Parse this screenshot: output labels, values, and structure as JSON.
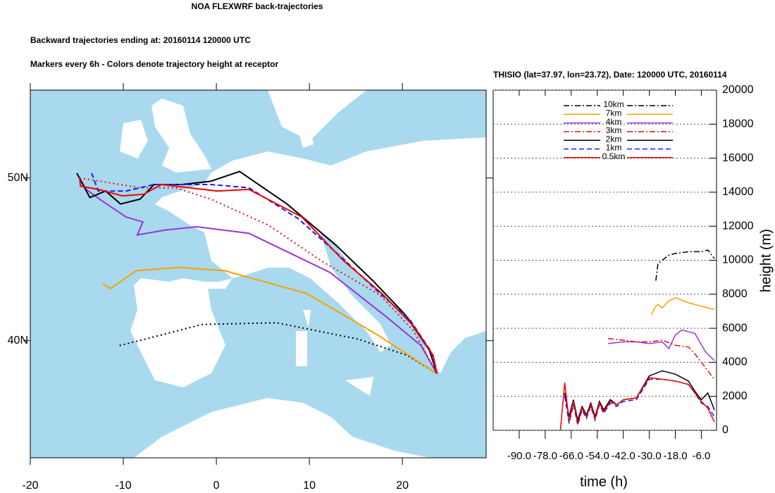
{
  "chart_data": [
    {
      "type": "trajectory_map",
      "title": "NOA FLEXWRF back-trajectories",
      "subtitle": "Backward trajectories ending at: 20160114  120000 UTC",
      "annotation": "Markers every 6h - Colors denote trajectory height at receptor",
      "xlim": [
        -20,
        29
      ],
      "ylim": [
        32.8,
        55.4
      ],
      "xticks": [
        -20,
        -10,
        0,
        10,
        20
      ],
      "yticks": [
        {
          "value": 40,
          "label": "40N"
        },
        {
          "value": 50,
          "label": "50N"
        }
      ],
      "series": [
        {
          "color": "#000000",
          "dash": "dotted",
          "lon": [
            -10.4,
            -8.3,
            -1.5,
            6.5,
            15.2,
            20.5,
            23.72
          ],
          "lat": [
            39.7,
            40.0,
            41.0,
            41.1,
            40.1,
            39.1,
            37.97
          ]
        },
        {
          "color": "#f5a300",
          "dash": "solid",
          "lon": [
            -12.2,
            -11.4,
            -8.6,
            -4.0,
            0.9,
            9.7,
            17.2,
            23.72
          ],
          "lat": [
            43.5,
            43.2,
            44.3,
            44.5,
            44.3,
            42.9,
            40.4,
            37.97
          ]
        },
        {
          "color": "#9933dd",
          "dash": "solid",
          "lon": [
            -14.7,
            -14.0,
            -12.3,
            -9.7,
            -7.9,
            -8.5,
            -5.5,
            -2.1,
            3.5,
            12.2,
            18.2,
            22.0,
            23.72
          ],
          "lat": [
            50.0,
            49.3,
            48.6,
            47.6,
            47.3,
            46.5,
            46.8,
            47.0,
            46.6,
            44.2,
            41.5,
            39.7,
            37.97
          ]
        },
        {
          "color": "#e01010",
          "dash": "dotted",
          "lon": [
            -14.7,
            -12.5,
            -8.2,
            -4.4,
            -0.6,
            5.6,
            11.3,
            17.6,
            21.2,
            23.72
          ],
          "lat": [
            50.0,
            49.8,
            49.4,
            49.4,
            48.7,
            47.1,
            44.9,
            42.8,
            40.6,
            37.97
          ]
        },
        {
          "color": "#000000",
          "dash": "solid",
          "lon": [
            -15.0,
            -13.6,
            -11.9,
            -10.3,
            -8.2,
            -6.7,
            -3.7,
            -0.6,
            2.5,
            7.6,
            12.8,
            16.8,
            20.3,
            22.9,
            23.72
          ],
          "lat": [
            50.3,
            48.8,
            49.2,
            48.4,
            48.7,
            49.6,
            49.6,
            49.8,
            50.4,
            48.4,
            45.9,
            43.7,
            41.6,
            39.4,
            37.97
          ]
        },
        {
          "color": "#1a1aff",
          "dash": "dashed",
          "lon": [
            -13.4,
            -12.7,
            -9.7,
            -6.7,
            -0.6,
            3.5,
            8.8,
            13.5,
            17.4,
            20.8,
            23.0,
            23.72
          ],
          "lat": [
            50.3,
            49.2,
            49.2,
            49.6,
            49.6,
            49.4,
            47.5,
            45.1,
            43.0,
            41.3,
            39.4,
            37.97
          ]
        },
        {
          "color": "#ee0000",
          "dash": "solid",
          "lon": [
            -14.7,
            -14.6,
            -12.7,
            -10.1,
            -7.8,
            -5.9,
            -2.9,
            0.1,
            3.5,
            9.2,
            13.7,
            17.8,
            21.2,
            23.3,
            23.72
          ],
          "lat": [
            50.0,
            49.5,
            49.3,
            48.9,
            49.0,
            49.6,
            49.4,
            49.2,
            49.3,
            47.6,
            44.9,
            42.9,
            40.9,
            39.1,
            37.97
          ]
        }
      ]
    },
    {
      "type": "line",
      "title": "THISIO (lat=37.97,  lon=23.72), Date: 120000 UTC, 20160114",
      "xlabel": "time (h)",
      "ylabel": "height (m)",
      "xlim": [
        -102,
        1
      ],
      "ylim": [
        0,
        20000
      ],
      "xticks": [
        {
          "value": -90,
          "label": "-90.0"
        },
        {
          "value": -78,
          "label": "-78.0"
        },
        {
          "value": -66,
          "label": "-66.0"
        },
        {
          "value": -54,
          "label": "-54.0"
        },
        {
          "value": -42,
          "label": "-42.0"
        },
        {
          "value": -30,
          "label": "-30.0"
        },
        {
          "value": -18,
          "label": "-18.0"
        },
        {
          "value": -6,
          "label": "-6.0"
        }
      ],
      "yticks": [
        0,
        2000,
        4000,
        6000,
        8000,
        10000,
        12000,
        14000,
        16000,
        18000,
        20000
      ],
      "grid": true,
      "legend_position": "top",
      "series": [
        {
          "name": "10km",
          "color": "#000000",
          "dash": "dashdot",
          "x": [
            -27,
            -26,
            -24,
            -21,
            -18,
            -12,
            -6,
            -3,
            0
          ],
          "values": [
            8800,
            9800,
            10000,
            10300,
            10400,
            10500,
            10500,
            10600,
            10100
          ]
        },
        {
          "name": "7km",
          "color": "#f5a300",
          "dash": "solid",
          "x": [
            -29,
            -27,
            -26,
            -24,
            -21,
            -18,
            -12,
            -6,
            -3,
            0
          ],
          "values": [
            6800,
            7300,
            7400,
            7200,
            7600,
            7800,
            7500,
            7300,
            7200,
            7100
          ]
        },
        {
          "name": "4km",
          "color": "#9933dd",
          "dash": "solid",
          "x": [
            -49,
            -42,
            -36,
            -30,
            -24,
            -21,
            -18,
            -15,
            -12,
            -9,
            -4,
            0
          ],
          "values": [
            5100,
            5200,
            5200,
            5100,
            5200,
            4800,
            5600,
            5900,
            5800,
            5700,
            4600,
            4100
          ]
        },
        {
          "name": "3km",
          "color": "#e01010",
          "dash": "dashdot",
          "x": [
            -49,
            -42,
            -36,
            -30,
            -24,
            -18,
            -12,
            -9,
            -6,
            -3,
            0
          ],
          "values": [
            5400,
            5300,
            5200,
            5200,
            5300,
            5000,
            4900,
            4500,
            4000,
            3500,
            3000
          ]
        },
        {
          "name": "2km",
          "color": "#000000",
          "dash": "solid",
          "x": [
            -69,
            -67,
            -65,
            -63,
            -61,
            -59,
            -57,
            -55,
            -53,
            -51,
            -48,
            -45,
            -42,
            -36,
            -30,
            -24,
            -18,
            -12,
            -9,
            -6,
            -3,
            0
          ],
          "values": [
            2200,
            800,
            1800,
            600,
            1400,
            900,
            1600,
            800,
            1700,
            1200,
            1800,
            1500,
            1800,
            1900,
            3200,
            3500,
            3300,
            2900,
            2300,
            1800,
            2200,
            1200
          ]
        },
        {
          "name": "1km",
          "color": "#1a1aff",
          "dash": "dashed",
          "x": [
            -69,
            -67,
            -65,
            -63,
            -61,
            -59,
            -57,
            -55,
            -53,
            -51,
            -48,
            -45,
            -42,
            -36,
            -30,
            -24,
            -18,
            -12,
            -9,
            -6,
            -3,
            0
          ],
          "values": [
            2000,
            400,
            1500,
            300,
            1200,
            700,
            1400,
            600,
            1500,
            1000,
            1600,
            1400,
            1700,
            1800,
            3000,
            3000,
            2900,
            2700,
            2200,
            1600,
            1400,
            800
          ]
        },
        {
          "name": "0.5km",
          "color": "#ee0000",
          "dash": "solid",
          "x": [
            -71,
            -69,
            -67,
            -65,
            -63,
            -61,
            -59,
            -57,
            -55,
            -53,
            -51,
            -48,
            -45,
            -42,
            -36,
            -30,
            -24,
            -18,
            -12,
            -9,
            -6,
            -3,
            0
          ],
          "values": [
            0,
            2800,
            500,
            1700,
            400,
            1300,
            800,
            1500,
            700,
            1600,
            1100,
            1700,
            1500,
            1800,
            1900,
            3100,
            3000,
            2900,
            2700,
            2200,
            1700,
            1300,
            500
          ]
        }
      ]
    }
  ]
}
